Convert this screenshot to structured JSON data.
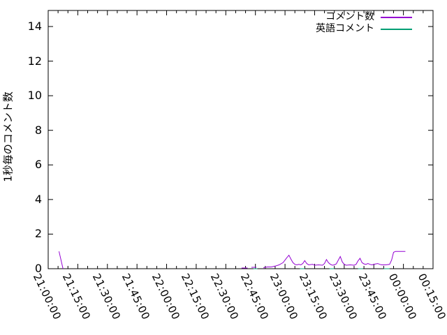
{
  "chart_data": {
    "type": "line",
    "title": "",
    "xlabel": "",
    "ylabel": "1秒毎のコメント数",
    "ylim": [
      0,
      15
    ],
    "xlim": [
      "21:00:00",
      "00:15:00"
    ],
    "grid": false,
    "legend_position": "top-right-inside",
    "background_color": "#ffffff",
    "axis_color": "#000000",
    "y_ticks": [
      0,
      2,
      4,
      6,
      8,
      10,
      12,
      14
    ],
    "x_tick_labels": [
      "21:00:00",
      "21:15:00",
      "21:30:00",
      "21:45:00",
      "22:00:00",
      "22:15:00",
      "22:30:00",
      "22:45:00",
      "23:00:00",
      "23:15:00",
      "23:30:00",
      "23:45:00",
      "00:00:00",
      "00:15:00"
    ],
    "x_minor_ticks_per_interval": 2,
    "series": [
      {
        "name": "コメント数",
        "color": "#9400d3",
        "segments": [
          [
            [
              "21:05:30",
              1.0
            ],
            [
              "21:07:30",
              0.0
            ]
          ],
          [
            [
              "22:38:00",
              0.04
            ],
            [
              "22:41:00",
              0.04
            ]
          ],
          [
            [
              "22:43:00",
              0.08
            ],
            [
              "22:45:30",
              0.08
            ]
          ],
          [
            [
              "22:49:00",
              0.05
            ],
            [
              "22:51:00",
              0.1
            ],
            [
              "22:53:00",
              0.1
            ],
            [
              "22:55:00",
              0.15
            ],
            [
              "22:57:00",
              0.22
            ],
            [
              "22:59:00",
              0.35
            ],
            [
              "23:01:00",
              0.65
            ],
            [
              "23:02:00",
              0.78
            ],
            [
              "23:03:00",
              0.55
            ],
            [
              "23:04:00",
              0.35
            ],
            [
              "23:05:00",
              0.25
            ],
            [
              "23:06:00",
              0.22
            ],
            [
              "23:07:00",
              0.25
            ],
            [
              "23:08:00",
              0.22
            ],
            [
              "23:09:00",
              0.3
            ],
            [
              "23:10:00",
              0.47
            ],
            [
              "23:11:00",
              0.3
            ],
            [
              "23:12:00",
              0.22
            ],
            [
              "23:14:00",
              0.25
            ],
            [
              "23:15:00",
              0.2
            ],
            [
              "23:17:00",
              0.22
            ],
            [
              "23:19:00",
              0.2
            ],
            [
              "23:20:00",
              0.3
            ],
            [
              "23:21:00",
              0.53
            ],
            [
              "23:22:00",
              0.35
            ],
            [
              "23:23:00",
              0.25
            ],
            [
              "23:24:00",
              0.2
            ],
            [
              "23:25:00",
              0.22
            ],
            [
              "23:26:00",
              0.28
            ],
            [
              "23:27:00",
              0.5
            ],
            [
              "23:28:00",
              0.7
            ],
            [
              "23:29:00",
              0.4
            ],
            [
              "23:30:00",
              0.25
            ],
            [
              "23:31:00",
              0.2
            ],
            [
              "23:33:00",
              0.22
            ],
            [
              "23:35:00",
              0.2
            ],
            [
              "23:36:00",
              0.25
            ],
            [
              "23:37:00",
              0.45
            ],
            [
              "23:38:00",
              0.6
            ],
            [
              "23:39:00",
              0.35
            ],
            [
              "23:40:00",
              0.28
            ],
            [
              "23:41:00",
              0.25
            ],
            [
              "23:42:00",
              0.3
            ],
            [
              "23:43:00",
              0.25
            ],
            [
              "23:44:00",
              0.22
            ],
            [
              "23:46:00",
              0.28
            ],
            [
              "23:47:00",
              0.3
            ],
            [
              "23:48:00",
              0.25
            ],
            [
              "23:49:00",
              0.22
            ],
            [
              "23:51:00",
              0.22
            ],
            [
              "23:53:00",
              0.25
            ],
            [
              "23:54:00",
              0.5
            ],
            [
              "23:55:00",
              0.95
            ],
            [
              "23:56:00",
              1.0
            ],
            [
              "00:01:00",
              1.0
            ]
          ]
        ]
      },
      {
        "name": "英語コメント",
        "color": "#009e73",
        "segments": [
          [
            [
              "22:44:00",
              0.0
            ],
            [
              "22:46:00",
              0.0
            ]
          ],
          [
            [
              "23:07:30",
              0.0
            ],
            [
              "23:10:00",
              0.0
            ]
          ],
          [
            [
              "23:22:30",
              0.0
            ],
            [
              "23:25:00",
              0.0
            ]
          ],
          [
            [
              "23:37:00",
              0.0
            ],
            [
              "23:39:30",
              0.0
            ]
          ],
          [
            [
              "23:50:00",
              0.0
            ],
            [
              "23:53:00",
              0.0
            ]
          ]
        ]
      }
    ]
  }
}
